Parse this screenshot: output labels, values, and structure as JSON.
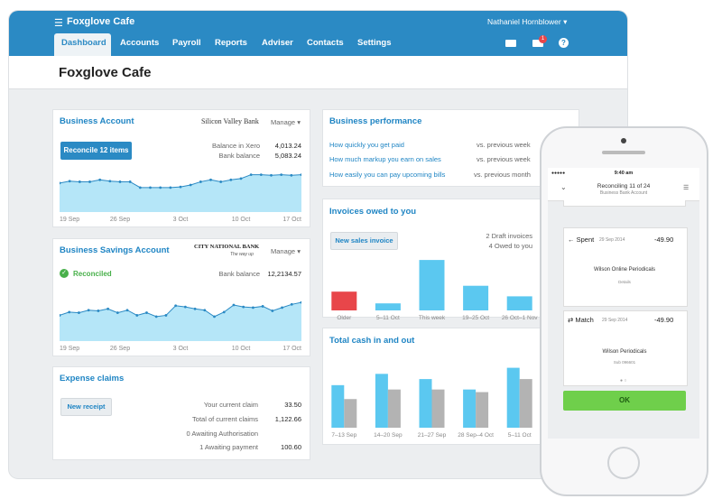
{
  "header": {
    "org": "Foxglove Cafe",
    "user": "Nathaniel Hornblower",
    "nav": [
      "Dashboard",
      "Accounts",
      "Payroll",
      "Reports",
      "Adviser",
      "Contacts",
      "Settings"
    ],
    "mail_count": "1",
    "help": "?"
  },
  "page_title": "Foxglove Cafe",
  "business_account": {
    "title": "Business Account",
    "bank": "Silicon Valley Bank",
    "manage": "Manage",
    "button": "Reconcile 12 items",
    "rows": [
      [
        "Balance in Xero",
        "4,013.24"
      ],
      [
        "Bank balance",
        "5,083.24"
      ]
    ],
    "chart": {
      "type": "area",
      "color": "#5bc8f0",
      "ylim": [
        0,
        100
      ],
      "x_labels": [
        "19 Sep",
        "26 Sep",
        "3 Oct",
        "10 Oct",
        "17 Oct"
      ],
      "values": [
        45,
        48,
        47,
        47,
        50,
        48,
        47,
        47,
        38,
        38,
        38,
        38,
        39,
        42,
        47,
        50,
        47,
        50,
        52,
        58,
        58,
        57,
        58,
        57,
        58
      ]
    }
  },
  "savings_account": {
    "title": "Business Savings Account",
    "bank": "CITY NATIONAL BANK",
    "bank_tagline": "The way up",
    "manage": "Manage",
    "status": "Reconciled",
    "rows": [
      [
        "Bank balance",
        "12,2134.57"
      ]
    ],
    "chart": {
      "type": "area",
      "color": "#5bc8f0",
      "ylim": [
        0,
        100
      ],
      "x_labels": [
        "19 Sep",
        "26 Sep",
        "3 Oct",
        "10 Oct",
        "17 Oct"
      ],
      "values": [
        40,
        45,
        44,
        48,
        47,
        50,
        44,
        48,
        40,
        44,
        38,
        40,
        55,
        53,
        50,
        48,
        38,
        45,
        56,
        53,
        52,
        54,
        47,
        52,
        57,
        60
      ]
    }
  },
  "expense_claims": {
    "title": "Expense claims",
    "button": "New receipt",
    "rows": [
      [
        "Your current claim",
        "33.50"
      ],
      [
        "Total of current claims",
        "1,122.66"
      ],
      [
        "0 Awaiting Authorisation"
      ],
      [
        "1 Awaiting payment",
        "100.60"
      ]
    ]
  },
  "business_performance": {
    "title": "Business performance",
    "rows": [
      [
        "How quickly you get paid",
        "vs. previous week"
      ],
      [
        "How much markup you earn on sales",
        "vs. previous week"
      ],
      [
        "How easily you can pay upcoming bills",
        "vs. previous month"
      ]
    ]
  },
  "invoices": {
    "title": "Invoices owed to you",
    "button": "New sales invoice",
    "notes": [
      "2 Draft invoices",
      "4 Owed to you"
    ],
    "chart": {
      "type": "bar",
      "ylim": [
        0,
        50
      ],
      "categories": [
        "Older",
        "5–11 Oct",
        "This week",
        "19–25 Oct",
        "26 Oct–1 Nov"
      ],
      "values": [
        16,
        6,
        43,
        21,
        12
      ],
      "colors": [
        "#e8464a",
        "#5bc8f0",
        "#5bc8f0",
        "#5bc8f0",
        "#5bc8f0"
      ]
    }
  },
  "cash": {
    "title": "Total cash in and out",
    "chart": {
      "type": "bar",
      "ylim": [
        0,
        80
      ],
      "categories": [
        "7–13 Sep",
        "14–20 Sep",
        "21–27 Sep",
        "28 Sep–4 Oct",
        "5–11 Oct"
      ],
      "series": [
        {
          "color": "#5bc8f0",
          "values": [
            49,
            62,
            56,
            44,
            69
          ]
        },
        {
          "color": "#b3b3b3",
          "values": [
            33,
            44,
            44,
            41,
            56
          ]
        }
      ]
    }
  },
  "phone": {
    "time": "9:40 am",
    "title": "Reconciling 11 of 24",
    "subtitle": "Business Bank Account",
    "cards": [
      {
        "kind": "Spent",
        "date": "29 Sep 2014",
        "amount": "-49.90",
        "payee": "Wilson Online Periodicals",
        "detail": "Details"
      },
      {
        "kind": "Match",
        "date": "29 Sep 2014",
        "amount": "-49.90",
        "payee": "Wilson Periodicals",
        "detail": "Sub 096601"
      }
    ],
    "button": "OK"
  }
}
